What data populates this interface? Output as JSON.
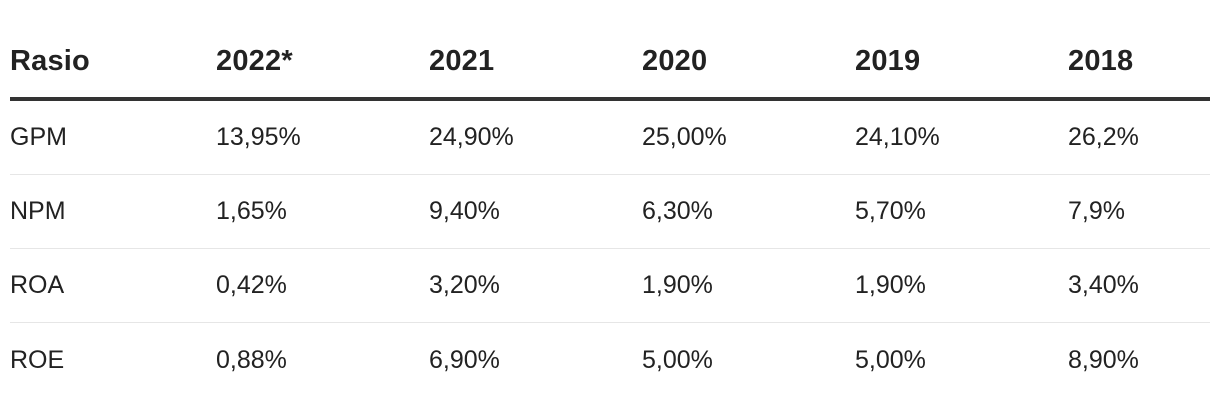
{
  "table": {
    "headers": [
      "Rasio",
      "2022*",
      "2021",
      "2020",
      "2019",
      "2018"
    ],
    "rows": [
      [
        "GPM",
        "13,95%",
        "24,90%",
        "25,00%",
        "24,10%",
        "26,2%"
      ],
      [
        "NPM",
        "1,65%",
        "9,40%",
        "6,30%",
        "5,70%",
        "7,9%"
      ],
      [
        "ROA",
        "0,42%",
        "3,20%",
        "1,90%",
        "1,90%",
        "3,40%"
      ],
      [
        "ROE",
        "0,88%",
        "6,90%",
        "5,00%",
        "5,00%",
        "8,90%"
      ]
    ]
  }
}
